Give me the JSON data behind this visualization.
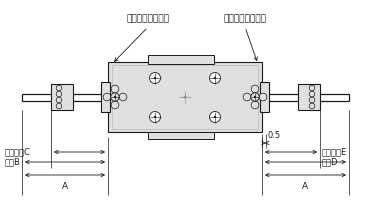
{
  "bg_color": "#ffffff",
  "line_color": "#1a1a1a",
  "gray_body": "#c8c8c8",
  "gray_light": "#e0e0e0",
  "gray_mid": "#b0b0b0",
  "gray_dark": "#909090",
  "label_left_top": "後退端アジャスタ",
  "label_right_top": "前進端アジャスタ",
  "label_C": "調整範囲C",
  "label_B": "最大B",
  "label_A_left": "A",
  "label_A_right": "A",
  "label_E": "調整範囲E",
  "label_D": "最大D",
  "label_05": "0.5",
  "figsize": [
    3.71,
    2.11
  ],
  "dpi": 100
}
